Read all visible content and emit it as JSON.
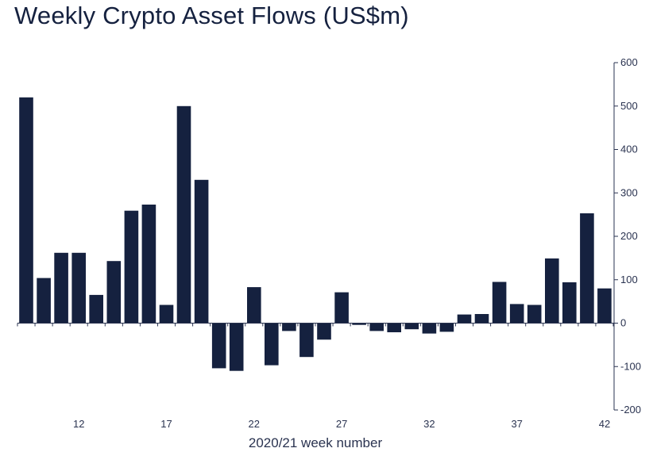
{
  "chart_data": {
    "type": "bar",
    "title": "Weekly Crypto Asset Flows (US$m)",
    "xlabel": "2020/21 week number",
    "ylabel": "",
    "ylim": [
      -200,
      600
    ],
    "y_ticks": [
      600,
      500,
      400,
      300,
      200,
      100,
      0,
      -100,
      -200
    ],
    "y_axis_side": "right",
    "x": [
      9,
      10,
      11,
      12,
      13,
      14,
      15,
      16,
      17,
      18,
      19,
      20,
      21,
      22,
      23,
      24,
      25,
      26,
      27,
      28,
      29,
      30,
      31,
      32,
      33,
      34,
      35,
      36,
      37,
      38,
      39,
      40,
      41,
      42
    ],
    "x_tick_labels": [
      "12",
      "17",
      "22",
      "27",
      "32",
      "37",
      "42"
    ],
    "x_tick_weeks": [
      12,
      17,
      22,
      27,
      32,
      37,
      42
    ],
    "values": [
      520,
      104,
      162,
      162,
      65,
      143,
      259,
      273,
      42,
      500,
      330,
      -104,
      -110,
      83,
      -97,
      -18,
      -78,
      -38,
      71,
      -4,
      -18,
      -21,
      -14,
      -24,
      -20,
      20,
      21,
      95,
      44,
      42,
      149,
      94,
      253,
      80
    ],
    "bar_color": "#15213f",
    "grid": false
  }
}
